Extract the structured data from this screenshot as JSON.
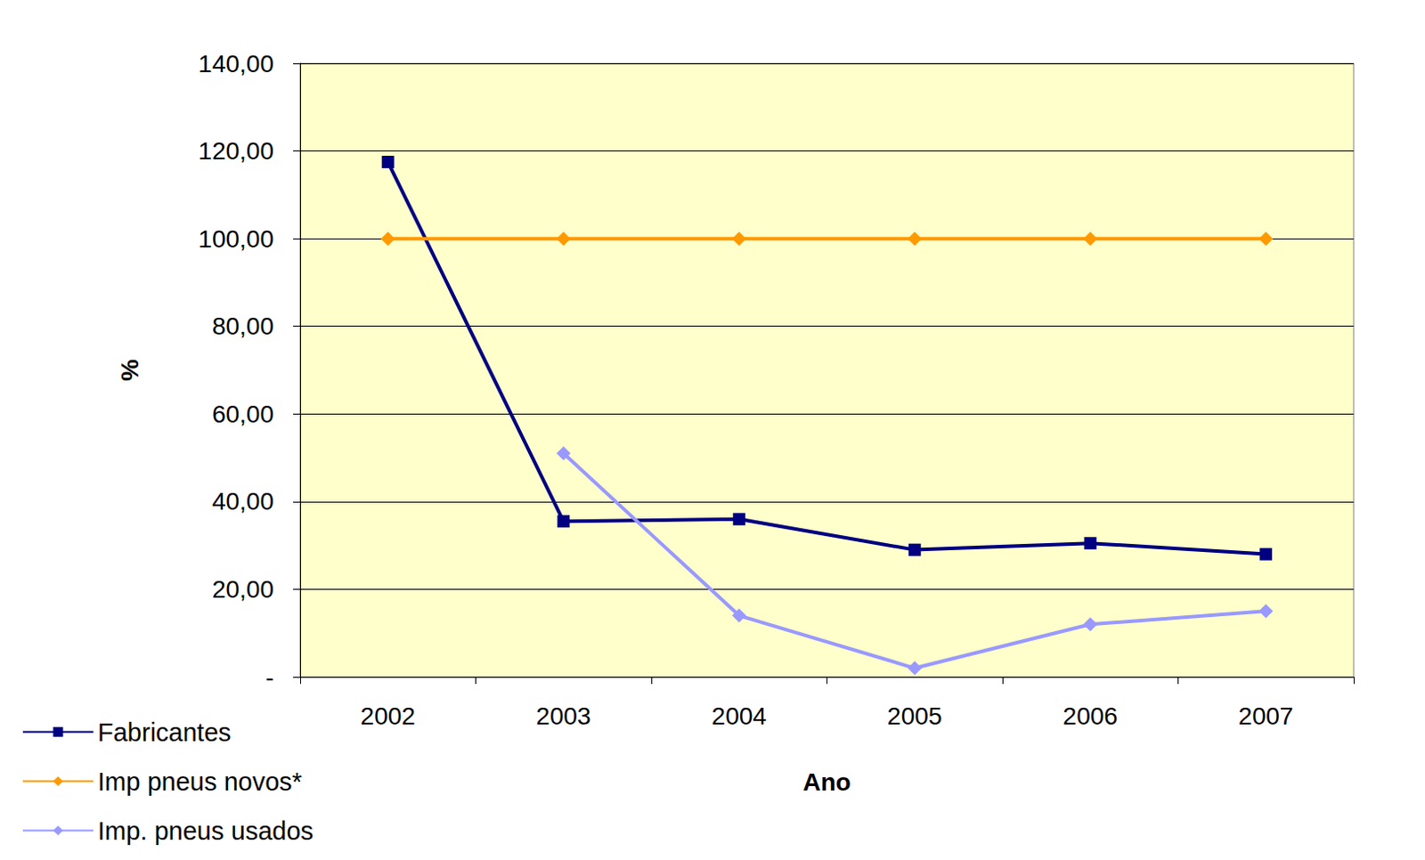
{
  "chart_data": {
    "type": "line",
    "x_label": "Ano",
    "y_label": "%",
    "categories": [
      "2002",
      "2003",
      "2004",
      "2005",
      "2006",
      "2007"
    ],
    "series": [
      {
        "name": "Fabricantes",
        "color": "#000080",
        "marker": "square",
        "line_style": "solid",
        "values": [
          117.5,
          35.5,
          36,
          29,
          30.5,
          28
        ]
      },
      {
        "name": "Imp pneus novos*",
        "color": "#FF9900",
        "marker": "diamond",
        "line_style": "solid",
        "values": [
          100,
          100,
          100,
          100,
          100,
          100
        ]
      },
      {
        "name": "Imp. pneus usados",
        "color": "#9999FF",
        "marker": "diamond",
        "line_style": "solid",
        "values": [
          null,
          51,
          14,
          2,
          12,
          15
        ]
      }
    ],
    "ylim": [
      0,
      140
    ],
    "yticks": [
      {
        "value": 0,
        "label": "-"
      },
      {
        "value": 20,
        "label": "20,00"
      },
      {
        "value": 40,
        "label": "40,00"
      },
      {
        "value": 60,
        "label": "60,00"
      },
      {
        "value": 80,
        "label": "80,00"
      },
      {
        "value": 100,
        "label": "100,00"
      },
      {
        "value": 120,
        "label": "120,00"
      },
      {
        "value": 140,
        "label": "140,00"
      }
    ],
    "grid": true,
    "legend": "bottom-left"
  }
}
